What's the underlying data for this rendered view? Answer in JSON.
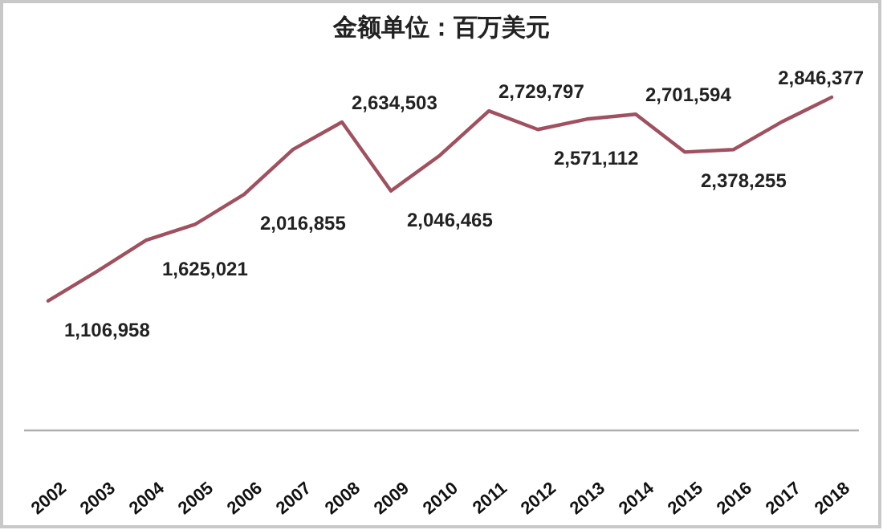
{
  "chart_data": {
    "type": "line",
    "title": "金额单位：百万美元",
    "categories": [
      "2002",
      "2003",
      "2004",
      "2005",
      "2006",
      "2007",
      "2008",
      "2009",
      "2010",
      "2011",
      "2012",
      "2013",
      "2014",
      "2015",
      "2016",
      "2017",
      "2018"
    ],
    "series": [
      {
        "color": "#a0505f",
        "values": [
          1106958,
          1360000,
          1625021,
          1760000,
          2016855,
          2400000,
          2634503,
          2046465,
          2350000,
          2729797,
          2571112,
          2660000,
          2701594,
          2378255,
          2400000,
          2640000,
          2846377
        ],
        "value_labels": [
          "1,106,958",
          null,
          "1,625,021",
          null,
          "2,016,855",
          null,
          "2,634,503",
          "2,046,465",
          null,
          "2,729,797",
          "2,571,112",
          null,
          "2,701,594",
          "2,378,255",
          null,
          null,
          "2,846,377"
        ]
      }
    ],
    "grid": false,
    "marker": "none",
    "line_style": "solid"
  }
}
